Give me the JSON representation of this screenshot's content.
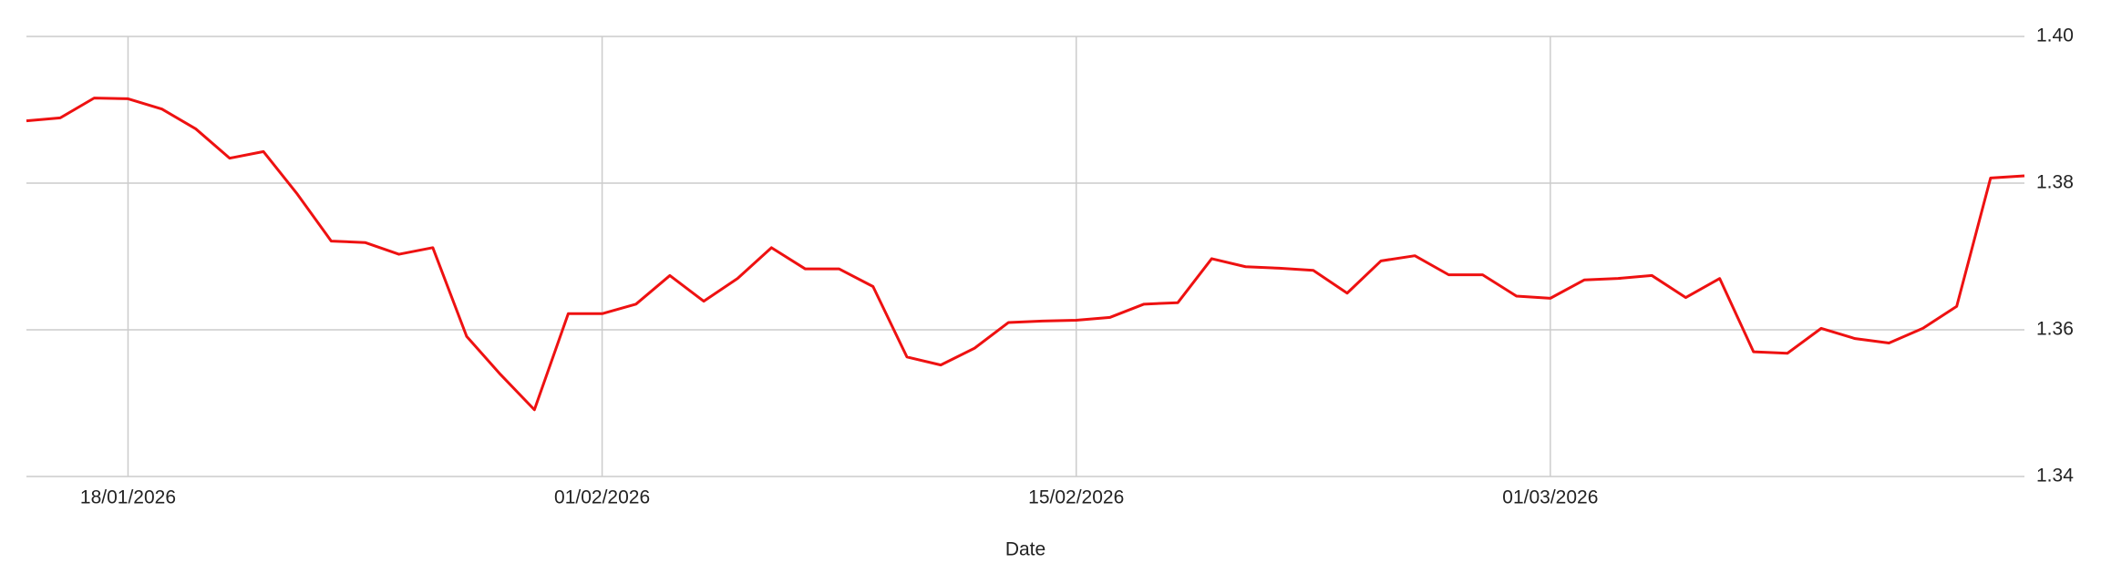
{
  "chart_data": {
    "type": "line",
    "x_label": "Date",
    "color": "#ee1111",
    "grid": true,
    "x": [
      "15/01/2026",
      "16/01/2026",
      "17/01/2026",
      "18/01/2026",
      "19/01/2026",
      "20/01/2026",
      "21/01/2026",
      "22/01/2026",
      "23/01/2026",
      "24/01/2026",
      "25/01/2026",
      "26/01/2026",
      "27/01/2026",
      "28/01/2026",
      "29/01/2026",
      "30/01/2026",
      "31/01/2026",
      "01/02/2026",
      "02/02/2026",
      "03/02/2026",
      "04/02/2026",
      "05/02/2026",
      "06/02/2026",
      "07/02/2026",
      "08/02/2026",
      "09/02/2026",
      "10/02/2026",
      "11/02/2026",
      "12/02/2026",
      "13/02/2026",
      "14/02/2026",
      "15/02/2026",
      "16/02/2026",
      "17/02/2026",
      "18/02/2026",
      "19/02/2026",
      "20/02/2026",
      "21/02/2026",
      "22/02/2026",
      "23/02/2026",
      "24/02/2026",
      "25/02/2026",
      "26/02/2026",
      "27/02/2026",
      "28/02/2026",
      "01/03/2026",
      "02/03/2026",
      "03/03/2026",
      "04/03/2026",
      "05/03/2026",
      "06/03/2026",
      "07/03/2026",
      "08/03/2026",
      "09/03/2026",
      "10/03/2026",
      "11/03/2026",
      "12/03/2026",
      "13/03/2026",
      "14/03/2026",
      "15/03/2026"
    ],
    "values": [
      1.3885,
      1.3889,
      1.3916,
      1.3915,
      1.3901,
      1.3874,
      1.3834,
      1.3843,
      1.3785,
      1.3721,
      1.3719,
      1.3703,
      1.3712,
      1.3591,
      1.3539,
      1.3491,
      1.3622,
      1.3622,
      1.3635,
      1.3674,
      1.3639,
      1.367,
      1.3712,
      1.3683,
      1.3683,
      1.3659,
      1.3563,
      1.3552,
      1.3575,
      1.361,
      1.3612,
      1.3613,
      1.3617,
      1.3635,
      1.3637,
      1.3697,
      1.3686,
      1.3684,
      1.3681,
      1.365,
      1.3694,
      1.3701,
      1.3675,
      1.3675,
      1.3646,
      1.3643,
      1.3668,
      1.367,
      1.3674,
      1.3644,
      1.367,
      1.357,
      1.3568,
      1.3602,
      1.3588,
      1.3582,
      1.3602,
      1.3632,
      1.3807,
      1.381
    ],
    "xlim": [
      "15/01/2026",
      "15/03/2026"
    ],
    "xticks": [
      "18/01/2026",
      "01/02/2026",
      "15/02/2026",
      "01/03/2026"
    ],
    "ylim": [
      1.34,
      1.4
    ],
    "yticks": [
      1.34,
      1.36,
      1.38,
      {
        "value": 1.4,
        "label": "1.40"
      }
    ]
  }
}
